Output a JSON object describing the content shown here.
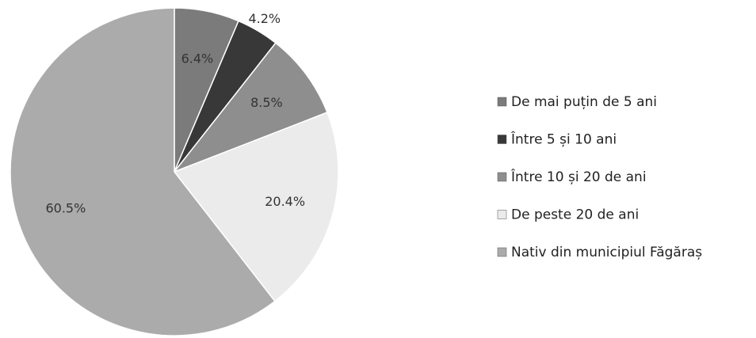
{
  "chart_data": {
    "type": "pie",
    "categories": [
      "De mai puțin de 5 ani",
      "Între 5 și 10 ani",
      "Între 10 și 20 de ani",
      "De peste 20 de ani",
      "Nativ din municipiul Făgăraș"
    ],
    "values": [
      6.4,
      4.2,
      8.5,
      20.4,
      60.5
    ],
    "value_labels": [
      "6.4%",
      "4.2%",
      "8.5%",
      "20.4%",
      "60.5%"
    ],
    "colors": [
      "#7b7b7b",
      "#383838",
      "#8e8e8e",
      "#ebebeb",
      "#ababab"
    ],
    "legend": "right"
  }
}
